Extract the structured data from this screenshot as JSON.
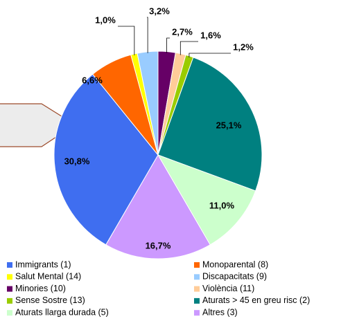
{
  "chart_data": {
    "type": "pie",
    "categories": [
      "Minories (10)",
      "Violència (11)",
      "Sense Sostre (13)",
      "Aturats > 45 en greu risc (2)",
      "Aturats llarga durada (5)",
      "Altres (3)",
      "Immigrants (1)",
      "Monoparental (8)",
      "Salut Mental (14)",
      "Discapacitats (9)"
    ],
    "values": [
      2.7,
      1.6,
      1.2,
      25.1,
      11.0,
      16.7,
      30.8,
      6.6,
      1.0,
      3.2
    ],
    "value_labels": [
      "2,7%",
      "1,6%",
      "1,2%",
      "25,1%",
      "11,0%",
      "16,7%",
      "30,8%",
      "6,6%",
      "1,0%",
      "3,2%"
    ],
    "colors": [
      "#660066",
      "#ffcc99",
      "#99cc00",
      "#008080",
      "#ccffcc",
      "#cc99ff",
      "#3f6ef0",
      "#ff6600",
      "#ffff00",
      "#99ccff"
    ],
    "legend": true
  }
}
